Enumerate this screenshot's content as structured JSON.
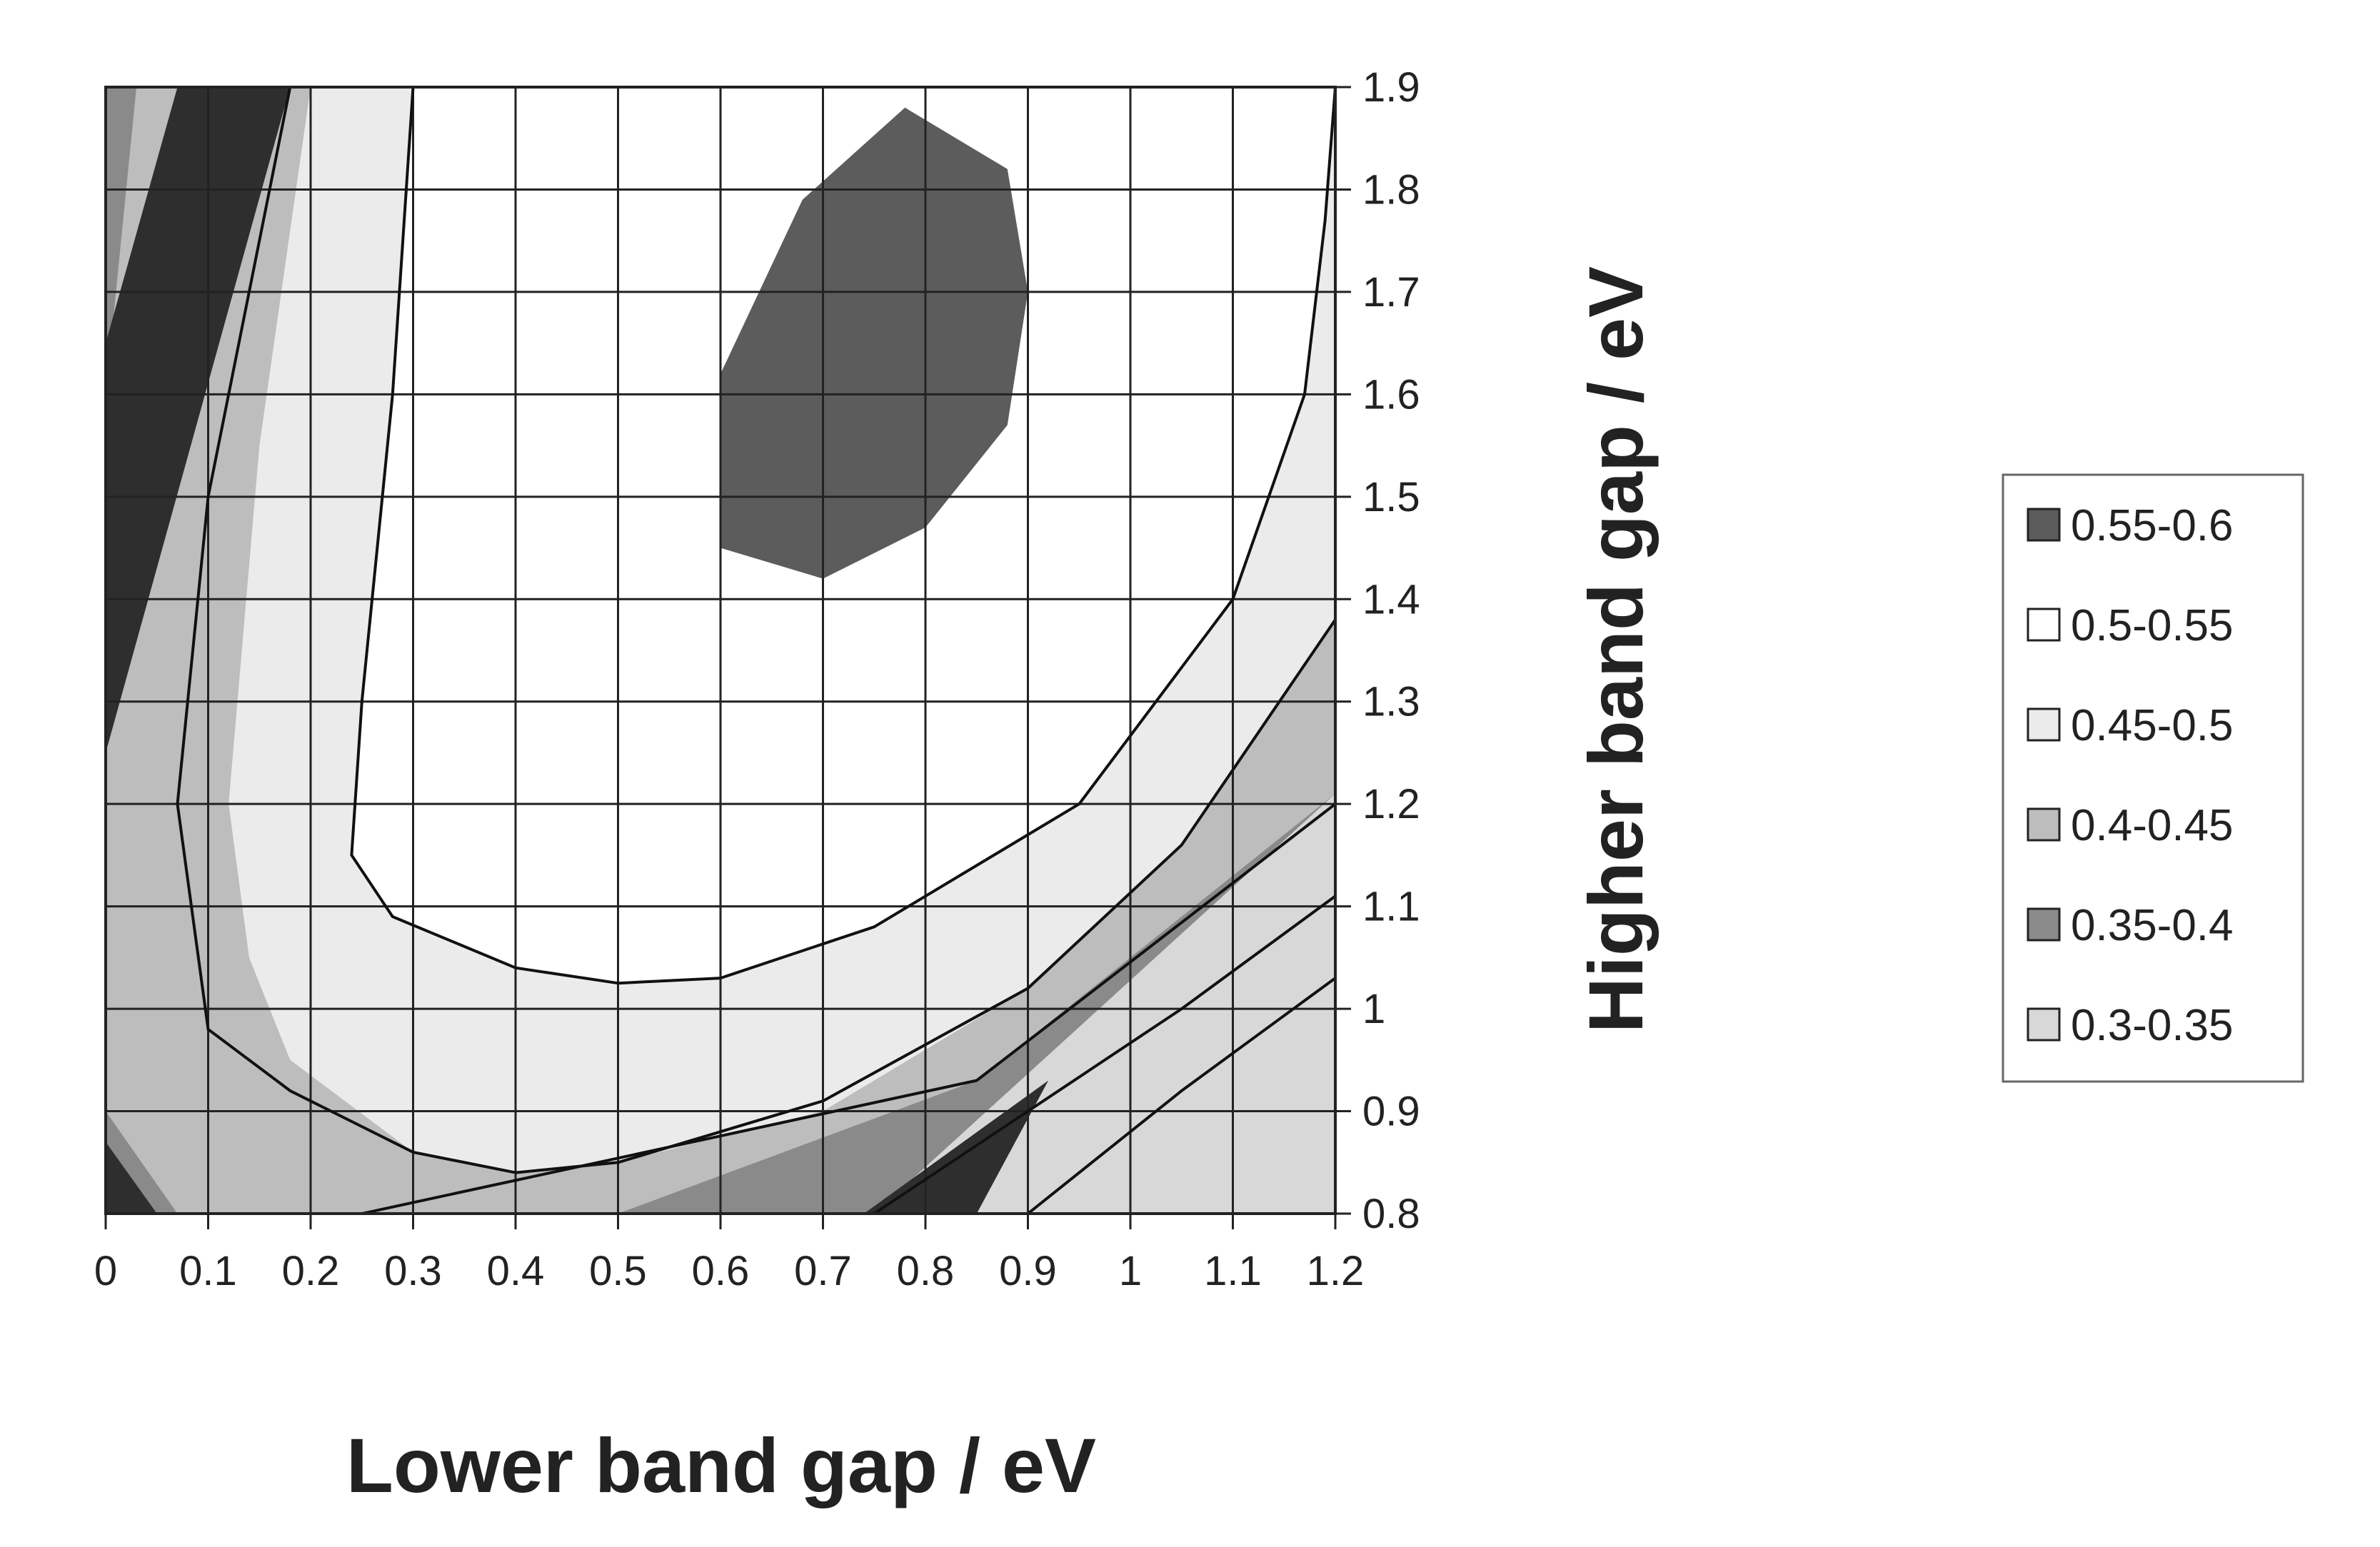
{
  "chart_data": {
    "type": "heatmap",
    "subtype": "filled-contour",
    "title": "",
    "xlabel": "Lower band gap / eV",
    "ylabel": "Higher band gap / eV",
    "x_ticks": [
      "0",
      "0.1",
      "0.2",
      "0.3",
      "0.4",
      "0.5",
      "0.6",
      "0.7",
      "0.8",
      "0.9",
      "1",
      "1.1",
      "1.2"
    ],
    "y_ticks": [
      "0.8",
      "0.9",
      "1",
      "1.1",
      "1.2",
      "1.3",
      "1.4",
      "1.5",
      "1.6",
      "1.7",
      "1.8",
      "1.9"
    ],
    "xlim": [
      0,
      1.2
    ],
    "ylim": [
      0.8,
      1.9
    ],
    "grid": true,
    "y_axis_side": "right",
    "legend_position": "right",
    "legend": [
      {
        "label": "0.55-0.6",
        "color": "#5c5c5c"
      },
      {
        "label": "0.5-0.55",
        "color": "#ffffff"
      },
      {
        "label": "0.45-0.5",
        "color": "#ebebeb"
      },
      {
        "label": "0.4-0.45",
        "color": "#bdbdbd"
      },
      {
        "label": "0.35-0.4",
        "color": "#8a8a8a"
      },
      {
        "label": "0.3-0.35",
        "color": "#d8d8d8"
      }
    ],
    "band_colors": {
      "darkest": "#2e2e2e",
      "b035": "#8a8a8a",
      "b040": "#bdbdbd",
      "b045": "#ebebeb",
      "b050": "#ffffff",
      "b055": "#5c5c5c",
      "b030": "#d8d8d8"
    },
    "regions": [
      {
        "band": "b030",
        "points": [
          [
            0,
            0.8
          ],
          [
            1.2,
            0.8
          ],
          [
            1.2,
            1.9
          ],
          [
            0,
            1.9
          ]
        ]
      },
      {
        "band": "b035",
        "points": [
          [
            0,
            0.8
          ],
          [
            0.75,
            0.8
          ],
          [
            1.2,
            1.21
          ],
          [
            1.2,
            1.9
          ],
          [
            0,
            1.9
          ]
        ]
      },
      {
        "band": "b040",
        "points": [
          [
            0.07,
            0.8
          ],
          [
            0.5,
            0.8
          ],
          [
            0.85,
            0.93
          ],
          [
            1.2,
            1.21
          ],
          [
            1.2,
            1.9
          ],
          [
            0.03,
            1.9
          ],
          [
            0,
            1.6
          ],
          [
            0,
            0.9
          ]
        ]
      },
      {
        "band": "b045",
        "points": [
          [
            0.18,
            0.95
          ],
          [
            0.3,
            0.86
          ],
          [
            0.4,
            0.84
          ],
          [
            0.5,
            0.85
          ],
          [
            0.7,
            0.9
          ],
          [
            0.9,
            1.02
          ],
          [
            1.05,
            1.16
          ],
          [
            1.2,
            1.38
          ],
          [
            1.2,
            1.9
          ],
          [
            0.2,
            1.9
          ],
          [
            0.15,
            1.55
          ],
          [
            0.12,
            1.2
          ],
          [
            0.14,
            1.05
          ]
        ]
      },
      {
        "band": "b050",
        "points": [
          [
            0.3,
            1.9
          ],
          [
            0.28,
            1.6
          ],
          [
            0.25,
            1.3
          ],
          [
            0.24,
            1.15
          ],
          [
            0.28,
            1.09
          ],
          [
            0.4,
            1.04
          ],
          [
            0.5,
            1.025
          ],
          [
            0.6,
            1.03
          ],
          [
            0.75,
            1.08
          ],
          [
            0.95,
            1.2
          ],
          [
            1.1,
            1.4
          ],
          [
            1.17,
            1.6
          ],
          [
            1.19,
            1.77
          ],
          [
            1.2,
            1.9
          ]
        ]
      },
      {
        "band": "b055",
        "points": [
          [
            0.6,
            1.52
          ],
          [
            0.6,
            1.62
          ],
          [
            0.68,
            1.79
          ],
          [
            0.78,
            1.88
          ],
          [
            0.88,
            1.82
          ],
          [
            0.9,
            1.7
          ],
          [
            0.88,
            1.57
          ],
          [
            0.8,
            1.47
          ],
          [
            0.7,
            1.42
          ],
          [
            0.6,
            1.45
          ]
        ]
      },
      {
        "band": "darkest",
        "points": [
          [
            0,
            1.25
          ],
          [
            0,
            1.65
          ],
          [
            0.07,
            1.9
          ],
          [
            0.18,
            1.9
          ]
        ]
      },
      {
        "band": "darkest",
        "points": [
          [
            0,
            0.8
          ],
          [
            0,
            0.87
          ],
          [
            0.05,
            0.8
          ]
        ]
      },
      {
        "band": "darkest",
        "points": [
          [
            0.74,
            0.8
          ],
          [
            0.92,
            0.93
          ],
          [
            0.85,
            0.8
          ]
        ]
      }
    ],
    "contour_lines": [
      [
        [
          0.25,
          0.8
        ],
        [
          0.85,
          0.93
        ],
        [
          1.2,
          1.2
        ]
      ],
      [
        [
          0.75,
          0.8
        ],
        [
          1.05,
          1.0
        ],
        [
          1.2,
          1.11
        ]
      ],
      [
        [
          0.9,
          0.8
        ],
        [
          1.05,
          0.92
        ],
        [
          1.2,
          1.03
        ]
      ],
      [
        [
          0.18,
          1.9
        ],
        [
          0.1,
          1.5
        ],
        [
          0.07,
          1.2
        ],
        [
          0.1,
          0.98
        ],
        [
          0.18,
          0.92
        ],
        [
          0.3,
          0.86
        ],
        [
          0.4,
          0.84
        ],
        [
          0.5,
          0.85
        ],
        [
          0.7,
          0.91
        ],
        [
          0.9,
          1.02
        ],
        [
          1.05,
          1.16
        ],
        [
          1.2,
          1.38
        ]
      ],
      [
        [
          0.3,
          1.9
        ],
        [
          0.28,
          1.6
        ],
        [
          0.25,
          1.3
        ],
        [
          0.24,
          1.15
        ],
        [
          0.28,
          1.09
        ],
        [
          0.4,
          1.04
        ],
        [
          0.5,
          1.025
        ],
        [
          0.6,
          1.03
        ],
        [
          0.75,
          1.08
        ],
        [
          0.95,
          1.2
        ],
        [
          1.1,
          1.4
        ],
        [
          1.17,
          1.6
        ],
        [
          1.19,
          1.77
        ],
        [
          1.2,
          1.9
        ]
      ]
    ]
  }
}
